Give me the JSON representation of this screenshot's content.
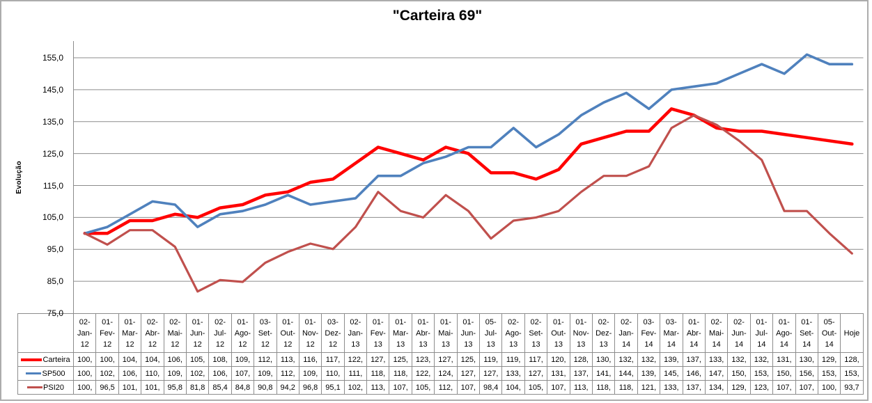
{
  "chart": {
    "title": "\"Carteira 69\"",
    "y_axis_title": "Evolução",
    "y_tick_labels": [
      "155,0",
      "145,0",
      "135,0",
      "125,0",
      "115,0",
      "105,0",
      "95,0",
      "85,0",
      "75,0"
    ]
  },
  "chart_data": {
    "type": "line",
    "title": "\"Carteira 69\"",
    "xlabel": "",
    "ylabel": "Evolução",
    "ylim": [
      75,
      160
    ],
    "y_tick_step": 10,
    "grid": true,
    "legend_position": "data-table-left",
    "categories": [
      "02-Jan-12",
      "01-Fev-12",
      "01-Mar-12",
      "02-Abr-12",
      "02-Mai-12",
      "01-Jun-12",
      "02-Jul-12",
      "01-Ago-12",
      "03-Set-12",
      "01-Out-12",
      "01-Nov-12",
      "03-Dez-12",
      "02-Jan-13",
      "01-Fev-13",
      "01-Mar-13",
      "01-Abr-13",
      "01-Mai-13",
      "01-Jun-13",
      "05-Jul-13",
      "02-Ago-13",
      "02-Set-13",
      "01-Out-13",
      "01-Nov-13",
      "02-Dez-13",
      "02-Jan-14",
      "03-Fev-14",
      "03-Mar-14",
      "01-Abr-14",
      "02-Mai-14",
      "02-Jun-14",
      "01-Jul-14",
      "01-Ago-14",
      "01-Set-14",
      "05-Out-14",
      "Hoje"
    ],
    "series": [
      {
        "name": "Carteira",
        "color": "#FF0000",
        "values": [
          100,
          100,
          104,
          104,
          106,
          105,
          108,
          109,
          112,
          113,
          116,
          117,
          122,
          127,
          125,
          123,
          127,
          125,
          119,
          119,
          117,
          120,
          128,
          130,
          132,
          132,
          139,
          137,
          133,
          132,
          132,
          131,
          130,
          129,
          128
        ]
      },
      {
        "name": "SP500",
        "color": "#4F81BD",
        "values": [
          100,
          102,
          106,
          110,
          109,
          102,
          106,
          107,
          109,
          112,
          109,
          110,
          111,
          118,
          118,
          122,
          124,
          127,
          127,
          133,
          127,
          131,
          137,
          141,
          144,
          139,
          145,
          146,
          147,
          150,
          153,
          150,
          156,
          153,
          153
        ]
      },
      {
        "name": "PSI20",
        "color": "#C0504D",
        "values": [
          100,
          96.5,
          101,
          101,
          95.8,
          81.8,
          85.4,
          84.8,
          90.8,
          94.2,
          96.8,
          95.1,
          102,
          113,
          107,
          105,
          112,
          107,
          98.4,
          104,
          105,
          107,
          113,
          118,
          118,
          121,
          133,
          137,
          134,
          129,
          123,
          107,
          107,
          100,
          93.7
        ]
      }
    ]
  },
  "data_table": {
    "series_labels": [
      "Carteira",
      "SP500",
      "PSI20"
    ],
    "cell_text": [
      [
        "100,",
        "100,",
        "104,",
        "104,",
        "106,",
        "105,",
        "108,",
        "109,",
        "112,",
        "113,",
        "116,",
        "117,",
        "122,",
        "127,",
        "125,",
        "123,",
        "127,",
        "125,",
        "119,",
        "119,",
        "117,",
        "120,",
        "128,",
        "130,",
        "132,",
        "132,",
        "139,",
        "137,",
        "133,",
        "132,",
        "132,",
        "131,",
        "130,",
        "129,",
        "128,"
      ],
      [
        "100,",
        "102,",
        "106,",
        "110,",
        "109,",
        "102,",
        "106,",
        "107,",
        "109,",
        "112,",
        "109,",
        "110,",
        "111,",
        "118,",
        "118,",
        "122,",
        "124,",
        "127,",
        "127,",
        "133,",
        "127,",
        "131,",
        "137,",
        "141,",
        "144,",
        "139,",
        "145,",
        "146,",
        "147,",
        "150,",
        "153,",
        "150,",
        "156,",
        "153,",
        "153,"
      ],
      [
        "100,",
        "96,5",
        "101,",
        "101,",
        "95,8",
        "81,8",
        "85,4",
        "84,8",
        "90,8",
        "94,2",
        "96,8",
        "95,1",
        "102,",
        "113,",
        "107,",
        "105,",
        "112,",
        "107,",
        "98,4",
        "104,",
        "105,",
        "107,",
        "113,",
        "118,",
        "118,",
        "121,",
        "133,",
        "137,",
        "134,",
        "129,",
        "123,",
        "107,",
        "107,",
        "100,",
        "93,7"
      ]
    ]
  }
}
